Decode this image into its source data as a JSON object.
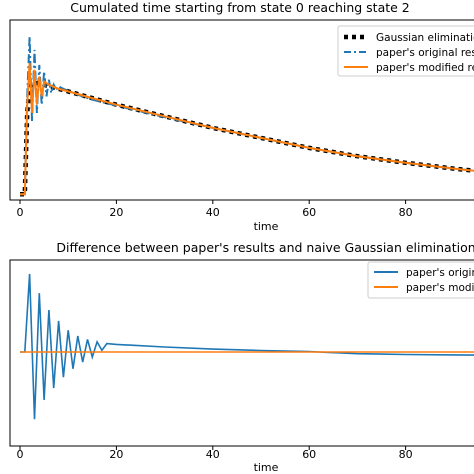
{
  "chart_data": [
    {
      "type": "line",
      "title": "Cumulated time starting from state 0 reaching state 2",
      "xlabel": "time",
      "ylabel": "",
      "xlim": [
        -3,
        100
      ],
      "ylim": [
        0,
        1
      ],
      "xticks": [
        "0",
        "20",
        "40",
        "60",
        "80"
      ],
      "xtick_values": [
        0,
        20,
        40,
        60,
        80
      ],
      "grid": false,
      "legend_position": "top-right",
      "series": [
        {
          "name": "Gaussian elimination",
          "color": "#000000",
          "style": "dotted-thick",
          "x": [
            0,
            1.0,
            1.5,
            2,
            3,
            4,
            5,
            6,
            8,
            10,
            15,
            20,
            30,
            40,
            50,
            60,
            70,
            80,
            90,
            100
          ],
          "y": [
            0.01,
            0.01,
            0.5,
            0.66,
            0.68,
            0.68,
            0.67,
            0.66,
            0.645,
            0.63,
            0.59,
            0.55,
            0.48,
            0.41,
            0.35,
            0.29,
            0.24,
            0.2,
            0.165,
            0.135
          ]
        },
        {
          "name": "paper's original results",
          "color": "#1f77b4",
          "style": "dash-dot",
          "x": [
            0,
            1.0,
            1.5,
            2,
            2.5,
            3,
            3.5,
            4,
            4.5,
            5,
            5.5,
            6,
            6.5,
            7,
            7.5,
            8,
            9,
            10,
            12,
            15,
            20,
            30,
            40,
            50,
            60,
            70,
            80,
            90,
            100
          ],
          "y": [
            0.01,
            0.01,
            0.6,
            0.96,
            0.45,
            0.88,
            0.5,
            0.79,
            0.55,
            0.75,
            0.6,
            0.7,
            0.62,
            0.67,
            0.64,
            0.66,
            0.645,
            0.635,
            0.61,
            0.58,
            0.545,
            0.475,
            0.41,
            0.35,
            0.29,
            0.24,
            0.2,
            0.165,
            0.135
          ]
        },
        {
          "name": "paper's modified results",
          "color": "#ff7f0e",
          "style": "solid",
          "x": [
            0,
            1.0,
            1.5,
            2,
            2.5,
            3,
            3.5,
            4,
            4.5,
            5,
            6,
            8,
            10,
            15,
            20,
            30,
            40,
            50,
            60,
            70,
            80,
            90,
            100
          ],
          "y": [
            0.01,
            0.01,
            0.55,
            0.8,
            0.5,
            0.76,
            0.55,
            0.72,
            0.6,
            0.69,
            0.67,
            0.645,
            0.63,
            0.59,
            0.55,
            0.48,
            0.41,
            0.35,
            0.29,
            0.24,
            0.2,
            0.165,
            0.135
          ]
        }
      ]
    },
    {
      "type": "line",
      "title": "Difference between paper's results and naive Gaussian elimination",
      "xlabel": "time",
      "ylabel": "",
      "xlim": [
        -3,
        100
      ],
      "ylim": [
        -1,
        1
      ],
      "xticks": [
        "0",
        "20",
        "40",
        "60",
        "80"
      ],
      "xtick_values": [
        0,
        20,
        40,
        60,
        80
      ],
      "grid": false,
      "legend_position": "top-right",
      "series": [
        {
          "name": "paper's original results",
          "color": "#1f77b4",
          "style": "solid",
          "x": [
            0,
            1,
            2,
            3,
            4,
            5,
            6,
            7,
            8,
            9,
            10,
            11,
            12,
            13,
            14,
            15,
            16,
            17,
            18,
            20,
            30,
            40,
            50,
            60,
            62,
            64,
            66,
            70,
            80,
            90,
            100
          ],
          "y": [
            0,
            0,
            0.93,
            -0.8,
            0.7,
            -0.57,
            0.5,
            -0.43,
            0.37,
            -0.3,
            0.26,
            -0.2,
            0.19,
            -0.12,
            0.15,
            -0.06,
            0.12,
            0.02,
            0.1,
            0.09,
            0.06,
            0.035,
            0.018,
            0.005,
            0,
            -0.005,
            -0.01,
            -0.02,
            -0.03,
            -0.035,
            -0.04
          ]
        },
        {
          "name": "paper's modified results",
          "color": "#ff7f0e",
          "style": "solid",
          "x": [
            0,
            100
          ],
          "y": [
            0,
            0
          ]
        }
      ]
    }
  ]
}
